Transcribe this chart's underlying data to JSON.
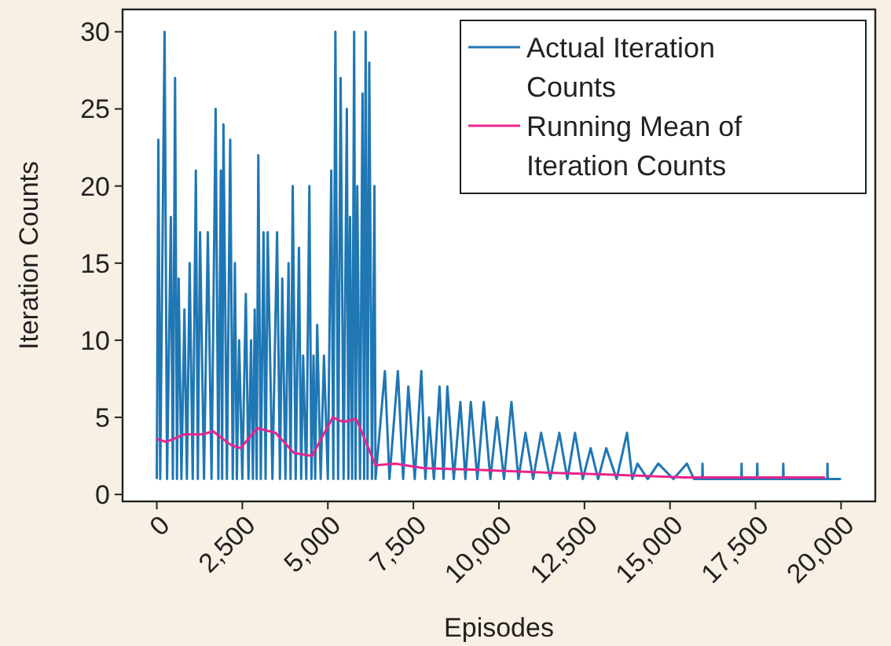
{
  "chart_data": {
    "type": "line",
    "xlabel": "Episodes",
    "ylabel": "Iteration Counts",
    "xlim": [
      -1000,
      21000
    ],
    "ylim": [
      -0.45,
      31.45
    ],
    "xticks": [
      0,
      {
        "value": 2500,
        "label": "2,500"
      },
      {
        "value": 5000,
        "label": "5,000"
      },
      {
        "value": 7500,
        "label": "7,500"
      },
      {
        "value": 10000,
        "label": "10,000"
      },
      {
        "value": 12500,
        "label": "12,500"
      },
      {
        "value": 15000,
        "label": "15,000"
      },
      {
        "value": 17500,
        "label": "17,500"
      },
      {
        "value": 20000,
        "label": "20,000"
      }
    ],
    "yticks": [
      0,
      5,
      10,
      15,
      20,
      25,
      30
    ],
    "grid": false,
    "legend": "top right",
    "marker": "none",
    "line_style": "solid",
    "series": [
      {
        "name": "Actual Iteration Counts",
        "color": "#1f77b4",
        "x": [
          0,
          46,
          100,
          228,
          300,
          411,
          470,
          534,
          590,
          640,
          720,
          808,
          880,
          960,
          1050,
          1142,
          1200,
          1264,
          1380,
          1492,
          1600,
          1720,
          1800,
          1872,
          1910,
          1948,
          2050,
          2146,
          2220,
          2283,
          2340,
          2406,
          2500,
          2603,
          2680,
          2754,
          2810,
          2862,
          2920,
          2968,
          3040,
          3120,
          3180,
          3242,
          3380,
          3516,
          3600,
          3668,
          3760,
          3851,
          3910,
          3973,
          4060,
          4155,
          4220,
          4277,
          4370,
          4460,
          4520,
          4581,
          4630,
          4688,
          4790,
          4886,
          5000,
          5100,
          5160,
          5220,
          5300,
          5373,
          5460,
          5555,
          5600,
          5647,
          5710,
          5769,
          5810,
          5860,
          5940,
          6013,
          6060,
          6104,
          6160,
          6210,
          6290,
          6362,
          6393,
          6667,
          6800,
          7047,
          7200,
          7352,
          7540,
          7732,
          7850,
          7960,
          8100,
          8265,
          8380,
          8493,
          8680,
          8873,
          9020,
          9178,
          9370,
          9557,
          9750,
          9940,
          10150,
          10365,
          10570,
          10776,
          11000,
          11233,
          11500,
          11766,
          12000,
          12223,
          12450,
          12680,
          12900,
          13136,
          13440,
          13744,
          13900,
          14049,
          14350,
          14657,
          15100,
          15494,
          15700,
          15940,
          15950,
          15960,
          17085,
          17093,
          17100,
          17540,
          17550,
          17560,
          18303,
          18311,
          18320,
          19596,
          19604,
          19610,
          20000
        ],
        "values": [
          1,
          23,
          1,
          30,
          1,
          18,
          1,
          27,
          1,
          14,
          1,
          12,
          1,
          15,
          1,
          21,
          1,
          17,
          1,
          17,
          1,
          25,
          1,
          21,
          1,
          24,
          1,
          23,
          1,
          15,
          1,
          10,
          1,
          13,
          1,
          10,
          1,
          12,
          1,
          22,
          1,
          17,
          1,
          17,
          1,
          17,
          1,
          14,
          1,
          15,
          1,
          20,
          1,
          16,
          1,
          9,
          1,
          20,
          1,
          9,
          1,
          11,
          1,
          9,
          1,
          21,
          1,
          30,
          1,
          27,
          1,
          25,
          1,
          18,
          1,
          30,
          1,
          20,
          1,
          26,
          1,
          30,
          1,
          28,
          1,
          20,
          1,
          8,
          1,
          8,
          1,
          7,
          1,
          8,
          1,
          5,
          1,
          7,
          1,
          7,
          1,
          6,
          1,
          6,
          1,
          6,
          1,
          5,
          1,
          6,
          1,
          4,
          1,
          4,
          1,
          4,
          1,
          4,
          1,
          3,
          1,
          3,
          1,
          4,
          1,
          2,
          1,
          2,
          1,
          2,
          1,
          1,
          2,
          1,
          1,
          2,
          1,
          1,
          2,
          1,
          1,
          2,
          1,
          1,
          2,
          1,
          1
        ]
      },
      {
        "name": "Running Mean of Iteration Counts",
        "color": "#e8248c",
        "x": [
          0,
          274,
          808,
          1340,
          1644,
          1872,
          2177,
          2450,
          2937,
          3470,
          4004,
          4535,
          5145,
          5449,
          5830,
          6393,
          6972,
          7808,
          9330,
          11613,
          13136,
          15419,
          19530
        ],
        "values": [
          3.6,
          3.4,
          3.9,
          3.9,
          4.1,
          3.7,
          3.2,
          3.0,
          4.3,
          4.0,
          2.7,
          2.5,
          5.0,
          4.7,
          4.9,
          1.9,
          2.0,
          1.7,
          1.6,
          1.4,
          1.3,
          1.1,
          1.1
        ]
      }
    ]
  }
}
